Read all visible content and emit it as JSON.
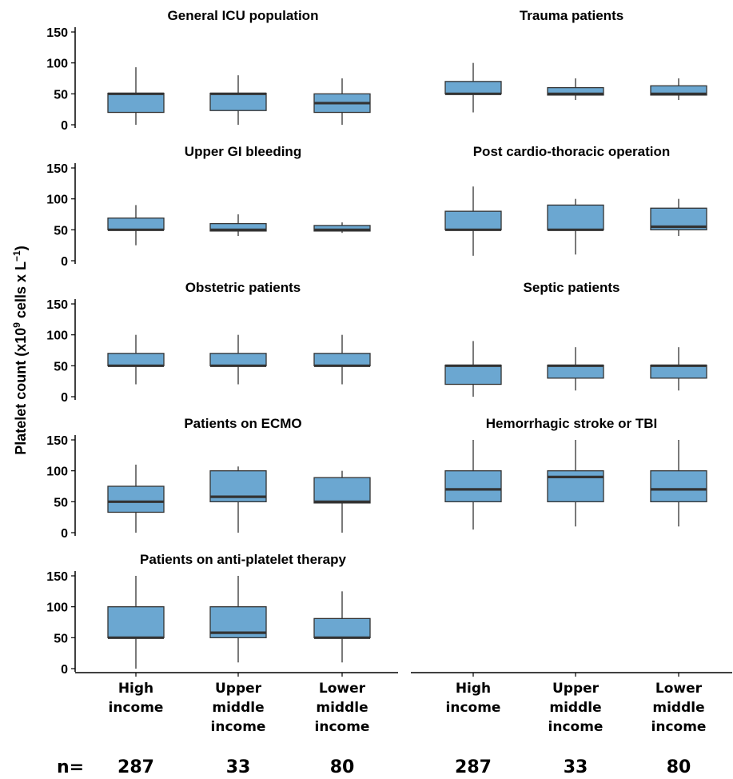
{
  "chart_data": {
    "type": "boxplot",
    "ylabel": "Platelet count (x10^9 cells x L^-1)",
    "ylabel_parts": {
      "base": "Platelet count (x10",
      "sup1": "9",
      "mid": " cells x L",
      "sup2": "−1",
      "end": ")"
    },
    "ylim": [
      0,
      150
    ],
    "yticks": [
      "0",
      "50",
      "100",
      "150"
    ],
    "categories": [
      [
        "High",
        "income"
      ],
      [
        "Upper",
        "middle",
        "income"
      ],
      [
        "Lower",
        "middle",
        "income"
      ]
    ],
    "n_prefix": "n=",
    "n_values": [
      "287",
      "33",
      "80"
    ],
    "box_color": "#6ba7d1",
    "panels": [
      {
        "title": "General ICU population",
        "boxes": [
          {
            "whisker_low": 0,
            "q1": 20,
            "median": 50,
            "q3": 51,
            "whisker_high": 93
          },
          {
            "whisker_low": 0,
            "q1": 23,
            "median": 50,
            "q3": 51,
            "whisker_high": 80
          },
          {
            "whisker_low": 0,
            "q1": 20,
            "median": 35,
            "q3": 50,
            "whisker_high": 75
          }
        ]
      },
      {
        "title": "Trauma patients",
        "boxes": [
          {
            "whisker_low": 20,
            "q1": 50,
            "median": 50,
            "q3": 70,
            "whisker_high": 100
          },
          {
            "whisker_low": 40,
            "q1": 48,
            "median": 50,
            "q3": 60,
            "whisker_high": 75
          },
          {
            "whisker_low": 40,
            "q1": 48,
            "median": 50,
            "q3": 63,
            "whisker_high": 75
          }
        ]
      },
      {
        "title": "Upper GI bleeding",
        "boxes": [
          {
            "whisker_low": 25,
            "q1": 50,
            "median": 50,
            "q3": 69,
            "whisker_high": 90
          },
          {
            "whisker_low": 40,
            "q1": 48,
            "median": 50,
            "q3": 60,
            "whisker_high": 75
          },
          {
            "whisker_low": 45,
            "q1": 48,
            "median": 50,
            "q3": 57,
            "whisker_high": 62
          }
        ]
      },
      {
        "title": "Post cardio-thoracic operation",
        "boxes": [
          {
            "whisker_low": 8,
            "q1": 50,
            "median": 50,
            "q3": 80,
            "whisker_high": 120
          },
          {
            "whisker_low": 10,
            "q1": 50,
            "median": 50,
            "q3": 90,
            "whisker_high": 100
          },
          {
            "whisker_low": 40,
            "q1": 50,
            "median": 55,
            "q3": 85,
            "whisker_high": 100
          }
        ]
      },
      {
        "title": "Obstetric patients",
        "boxes": [
          {
            "whisker_low": 20,
            "q1": 50,
            "median": 50,
            "q3": 70,
            "whisker_high": 100
          },
          {
            "whisker_low": 20,
            "q1": 50,
            "median": 50,
            "q3": 70,
            "whisker_high": 100
          },
          {
            "whisker_low": 20,
            "q1": 50,
            "median": 50,
            "q3": 70,
            "whisker_high": 100
          }
        ]
      },
      {
        "title": "Septic patients",
        "boxes": [
          {
            "whisker_low": 0,
            "q1": 20,
            "median": 50,
            "q3": 51,
            "whisker_high": 90
          },
          {
            "whisker_low": 10,
            "q1": 30,
            "median": 50,
            "q3": 51,
            "whisker_high": 80
          },
          {
            "whisker_low": 10,
            "q1": 30,
            "median": 50,
            "q3": 51,
            "whisker_high": 80
          }
        ]
      },
      {
        "title": "Patients on ECMO",
        "boxes": [
          {
            "whisker_low": 0,
            "q1": 33,
            "median": 50,
            "q3": 75,
            "whisker_high": 110
          },
          {
            "whisker_low": 0,
            "q1": 50,
            "median": 58,
            "q3": 100,
            "whisker_high": 107
          },
          {
            "whisker_low": 0,
            "q1": 48,
            "median": 50,
            "q3": 89,
            "whisker_high": 100
          }
        ]
      },
      {
        "title": "Hemorrhagic stroke or TBI",
        "boxes": [
          {
            "whisker_low": 5,
            "q1": 50,
            "median": 70,
            "q3": 100,
            "whisker_high": 150
          },
          {
            "whisker_low": 10,
            "q1": 50,
            "median": 90,
            "q3": 100,
            "whisker_high": 150
          },
          {
            "whisker_low": 10,
            "q1": 50,
            "median": 70,
            "q3": 100,
            "whisker_high": 150
          }
        ]
      },
      {
        "title": "Patients on anti-platelet therapy",
        "boxes": [
          {
            "whisker_low": 0,
            "q1": 50,
            "median": 50,
            "q3": 100,
            "whisker_high": 150
          },
          {
            "whisker_low": 10,
            "q1": 50,
            "median": 58,
            "q3": 100,
            "whisker_high": 150
          },
          {
            "whisker_low": 10,
            "q1": 50,
            "median": 50,
            "q3": 81,
            "whisker_high": 125
          }
        ]
      }
    ]
  }
}
